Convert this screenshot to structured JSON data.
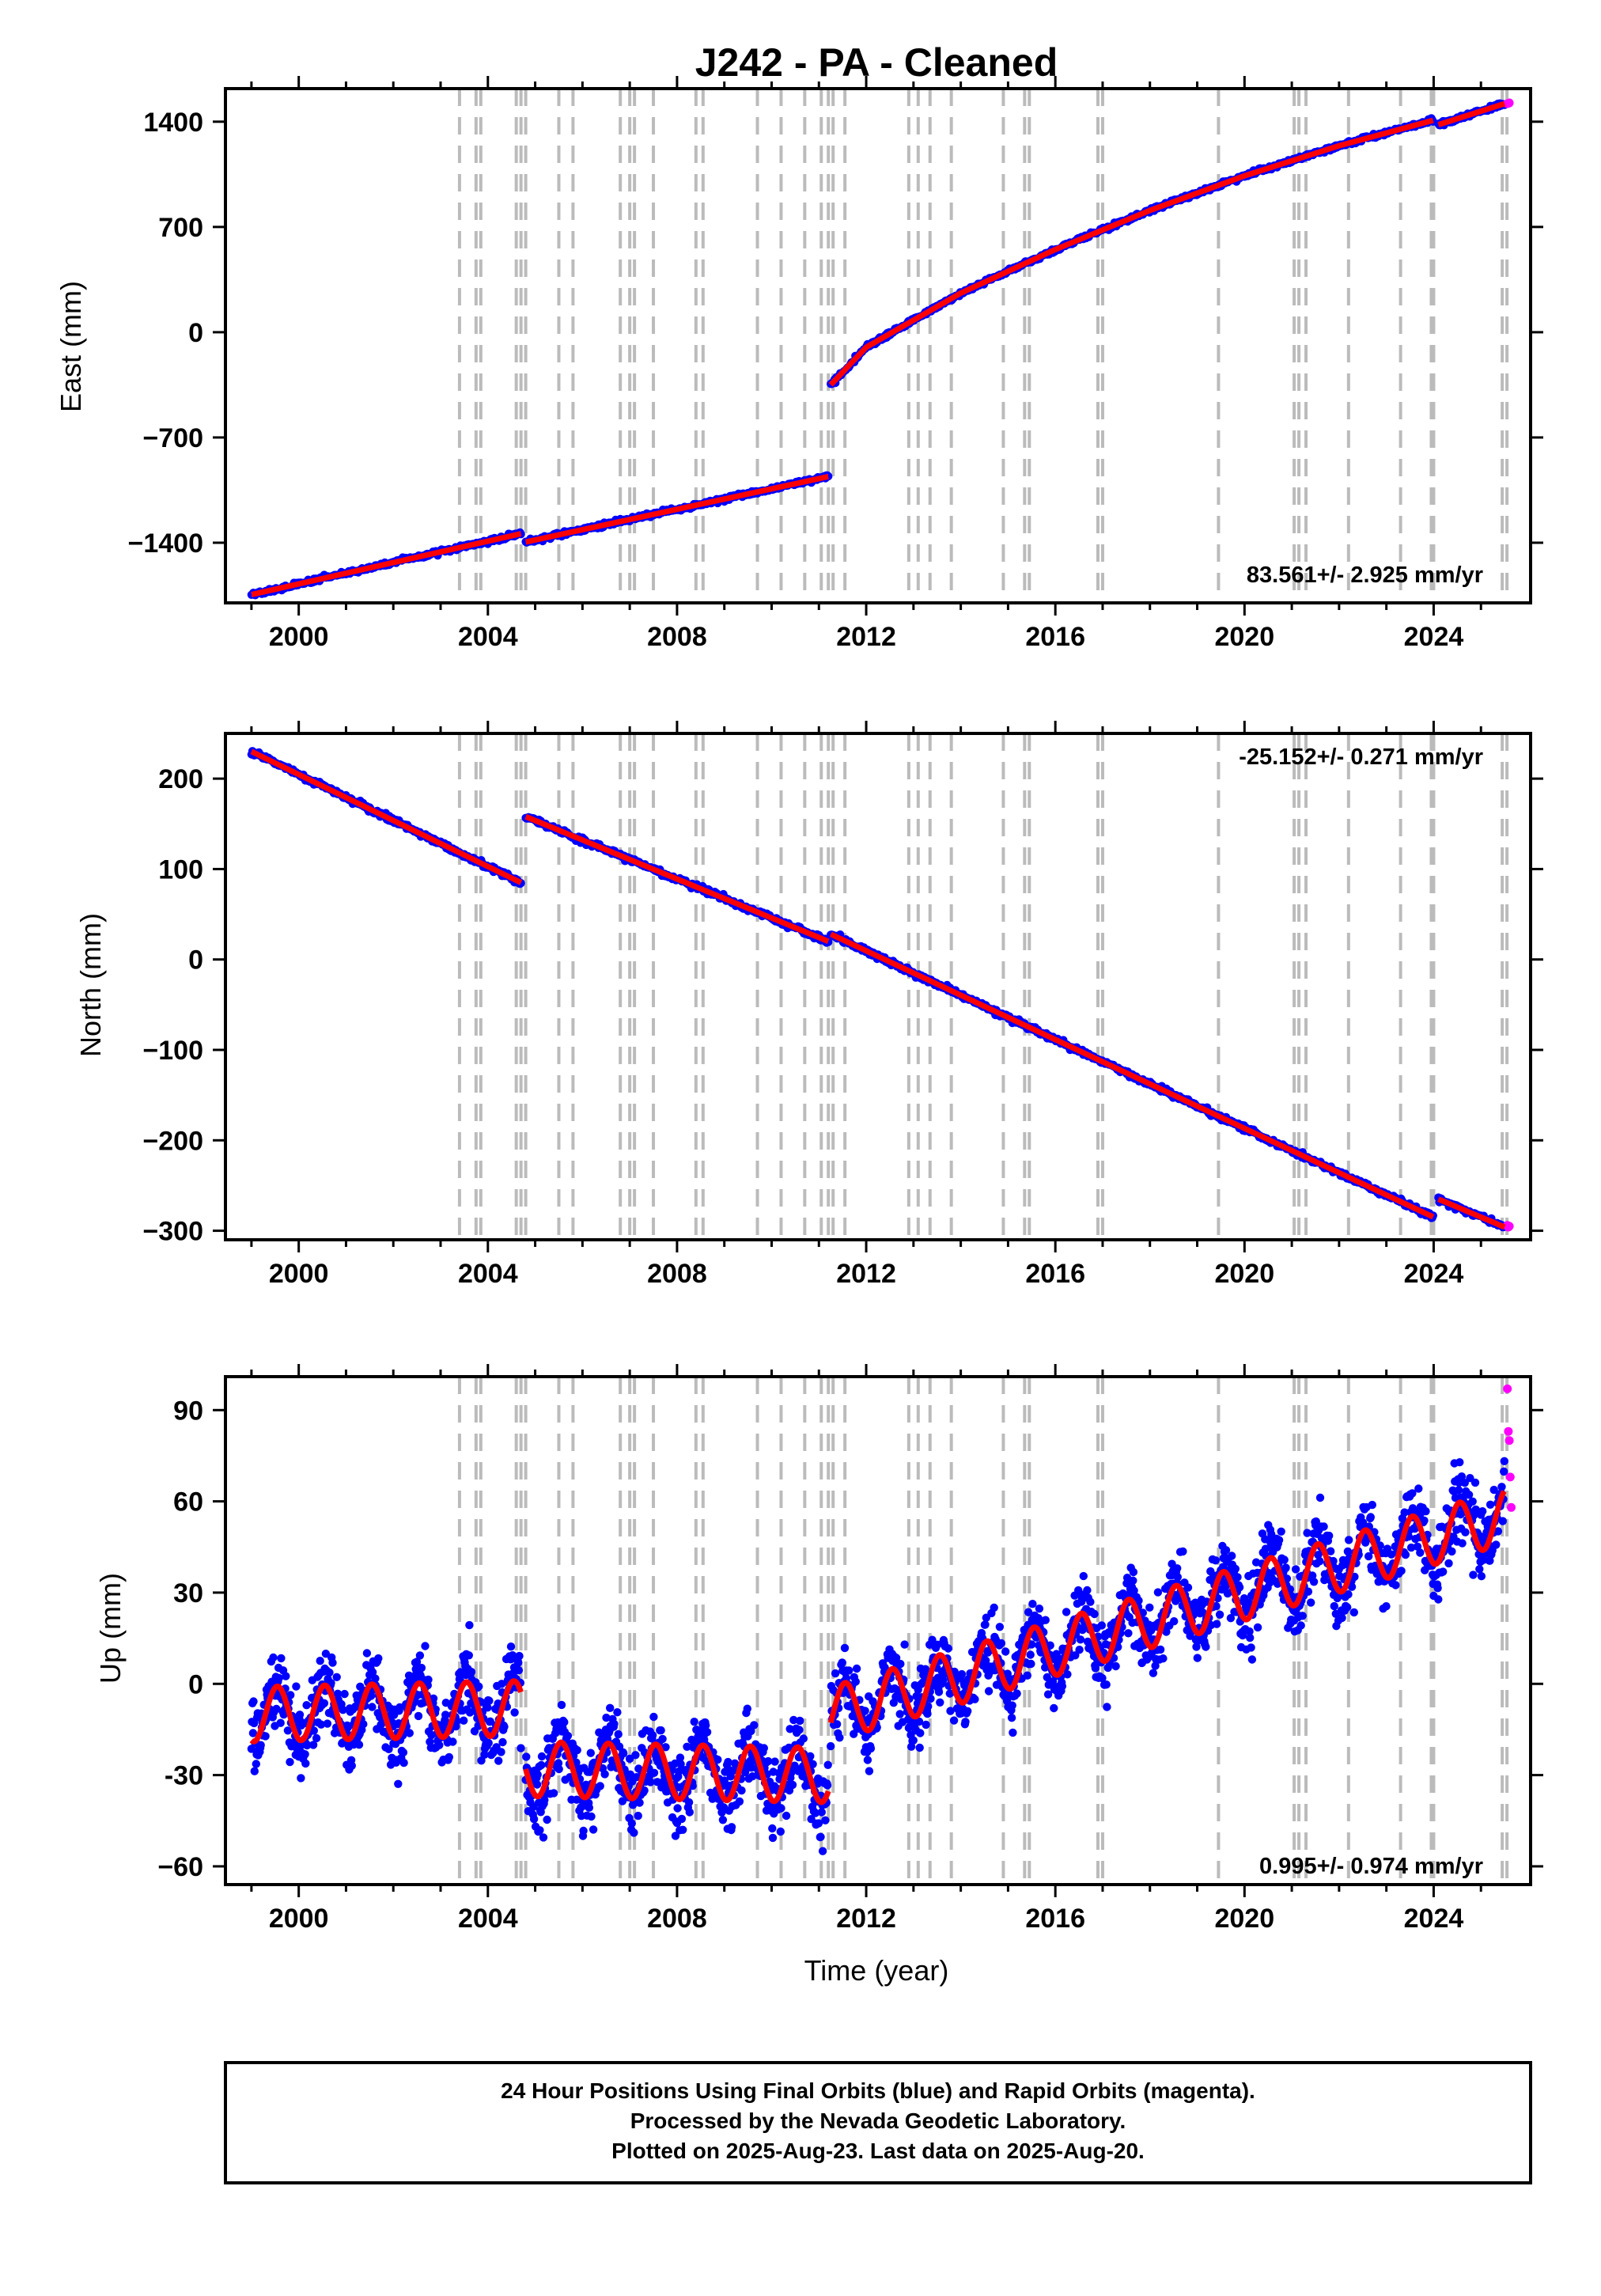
{
  "title": "J242  - PA - Cleaned",
  "colors": {
    "final": "#0000ff",
    "rapid": "#ff00ff",
    "model": "#ff0000",
    "event": "#bbbbbb"
  },
  "event_years": [
    2003.4,
    2003.75,
    2003.85,
    2004.6,
    2004.7,
    2004.8,
    2005.5,
    2005.8,
    2006.8,
    2007.0,
    2007.1,
    2007.5,
    2008.4,
    2008.55,
    2009.7,
    2010.2,
    2010.7,
    2011.05,
    2011.2,
    2011.3,
    2011.55,
    2012.9,
    2013.1,
    2013.35,
    2013.8,
    2014.9,
    2015.35,
    2015.45,
    2016.9,
    2017.0,
    2019.45,
    2021.05,
    2021.15,
    2021.3,
    2022.2,
    2023.3,
    2023.95,
    2024.0,
    2025.45,
    2025.55
  ],
  "chart_data": [
    {
      "type": "scatter",
      "panel": "east",
      "ylabel": "East (mm)",
      "xlim": [
        1998.45,
        2026.05
      ],
      "ylim": [
        -1800,
        1620
      ],
      "xticks": [
        2000,
        2004,
        2008,
        2012,
        2016,
        2020,
        2024
      ],
      "yticks": [
        -1400,
        -700,
        0,
        700,
        1400
      ],
      "ytick_labels": [
        "−1400",
        "−700",
        "0",
        "700",
        "1400"
      ],
      "rate": "83.561+/- 2.925 mm/yr",
      "rate_position": "bottom-right",
      "series": [
        {
          "color": "final",
          "segments": [
            {
              "x": [
                1999.0,
                2004.7
              ],
              "y": [
                -1745,
                -1340
              ]
            },
            {
              "x": [
                2004.8,
                2011.2
              ],
              "y": [
                -1395,
                -960
              ]
            },
            {
              "x": [
                2011.25,
                2012.0,
                2014.0,
                2016.0,
                2018.0,
                2020.0,
                2022.0,
                2024.0
              ],
              "y": [
                -350,
                -100,
                260,
                550,
                810,
                1040,
                1240,
                1410
              ]
            },
            {
              "x": [
                2024.1,
                2025.5
              ],
              "y": [
                1380,
                1520
              ]
            }
          ]
        },
        {
          "color": "rapid",
          "x": [
            2025.56,
            2025.58,
            2025.6
          ],
          "y": [
            1520,
            1522,
            1525
          ]
        }
      ]
    },
    {
      "type": "scatter",
      "panel": "north",
      "ylabel": "North (mm)",
      "xlim": [
        1998.45,
        2026.05
      ],
      "ylim": [
        -310,
        250
      ],
      "xticks": [
        2000,
        2004,
        2008,
        2012,
        2016,
        2020,
        2024
      ],
      "yticks": [
        -300,
        -200,
        -100,
        0,
        100,
        200
      ],
      "ytick_labels": [
        "−300",
        "−200",
        "−100",
        "0",
        "100",
        "200"
      ],
      "rate": "-25.152+/- 0.271 mm/yr",
      "rate_position": "top-right",
      "series": [
        {
          "color": "final",
          "segments": [
            {
              "x": [
                1999.0,
                2004.7
              ],
              "y": [
                230,
                85
              ]
            },
            {
              "x": [
                2004.8,
                2011.2
              ],
              "y": [
                158,
                20
              ]
            },
            {
              "x": [
                2011.25,
                2024.0
              ],
              "y": [
                28,
                -285
              ]
            },
            {
              "x": [
                2024.1,
                2025.5
              ],
              "y": [
                -265,
                -296
              ]
            }
          ]
        },
        {
          "color": "rapid",
          "x": [
            2025.56,
            2025.58,
            2025.6
          ],
          "y": [
            -294,
            -296,
            -295
          ]
        }
      ]
    },
    {
      "type": "scatter",
      "panel": "up",
      "ylabel": "Up (mm)",
      "xlabel": "Time (year)",
      "xlim": [
        1998.45,
        2026.05
      ],
      "ylim": [
        -66,
        101
      ],
      "xticks": [
        2000,
        2004,
        2008,
        2012,
        2016,
        2020,
        2024
      ],
      "yticks": [
        -60,
        -30,
        0,
        30,
        60,
        90
      ],
      "ytick_labels": [
        "−60",
        "-30",
        "0",
        "30",
        "60",
        "90"
      ],
      "rate": "0.995+/- 0.974 mm/yr",
      "rate_position": "bottom-right",
      "seasonal_amplitude": 9,
      "series": [
        {
          "color": "final",
          "segments": [
            {
              "x": [
                1999.0,
                2004.7
              ],
              "y": [
                -10,
                -8
              ]
            },
            {
              "x": [
                2004.8,
                2011.2
              ],
              "y": [
                -28,
                -30
              ]
            },
            {
              "x": [
                2011.25,
                2025.5
              ],
              "y": [
                -10,
                55
              ]
            }
          ]
        },
        {
          "color": "rapid",
          "x": [
            2025.56,
            2025.58,
            2025.6,
            2025.62,
            2025.64
          ],
          "y": [
            97,
            83,
            80,
            68,
            58
          ]
        }
      ]
    }
  ],
  "footer": {
    "line1": "24 Hour Positions Using Final Orbits (blue) and Rapid Orbits (magenta).",
    "line2": "Processed by the Nevada Geodetic Laboratory.",
    "line3": "Plotted on 2025-Aug-23. Last data on 2025-Aug-20."
  }
}
